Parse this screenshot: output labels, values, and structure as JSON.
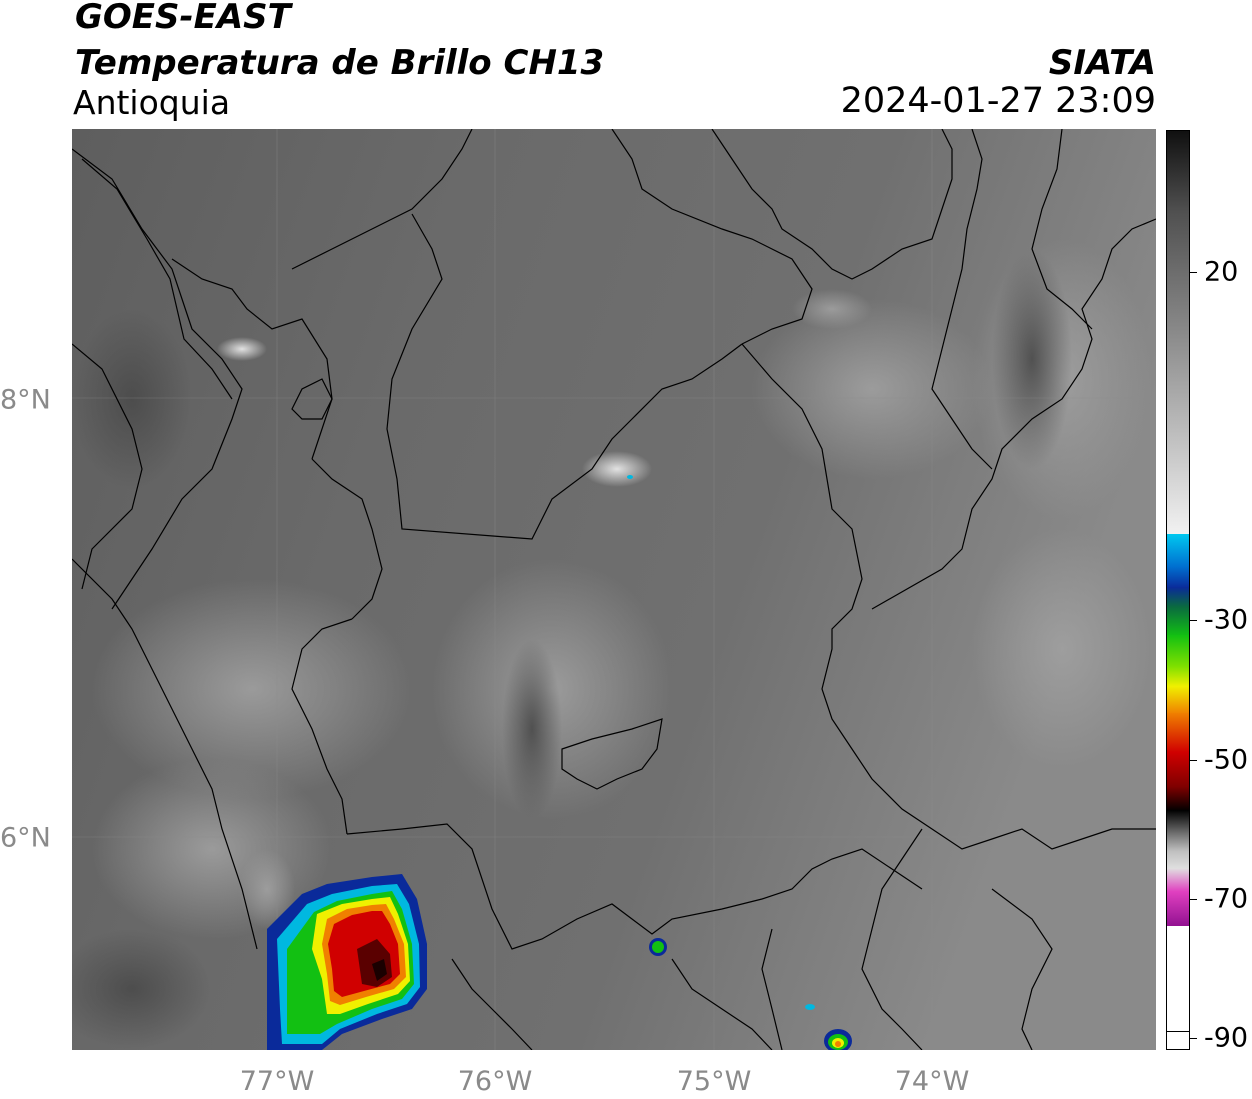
{
  "header": {
    "satellite": "GOES-EAST",
    "product": "Temperatura de Brillo CH13",
    "region": "Antioquia",
    "institution": "SIATA",
    "datetime": "2024-01-27 23:09"
  },
  "map": {
    "longitude_ticks": [
      "77°W",
      "76°W",
      "75°W",
      "74°W"
    ],
    "latitude_ticks": [
      "8°N",
      "6°N"
    ]
  },
  "colorbar": {
    "tick_labels": [
      "20",
      "-30",
      "-50",
      "-70",
      "-90"
    ],
    "colors": {
      "warm_gray": "#404040",
      "cold_gray": "#f2f2f2",
      "cyan": "#00c8f0",
      "blue": "#0a2a9a",
      "green": "#12c012",
      "yellow": "#f0f000",
      "orange": "#f08000",
      "red": "#d00000",
      "black": "#000000",
      "magenta": "#e040c0",
      "purple": "#901090"
    }
  }
}
